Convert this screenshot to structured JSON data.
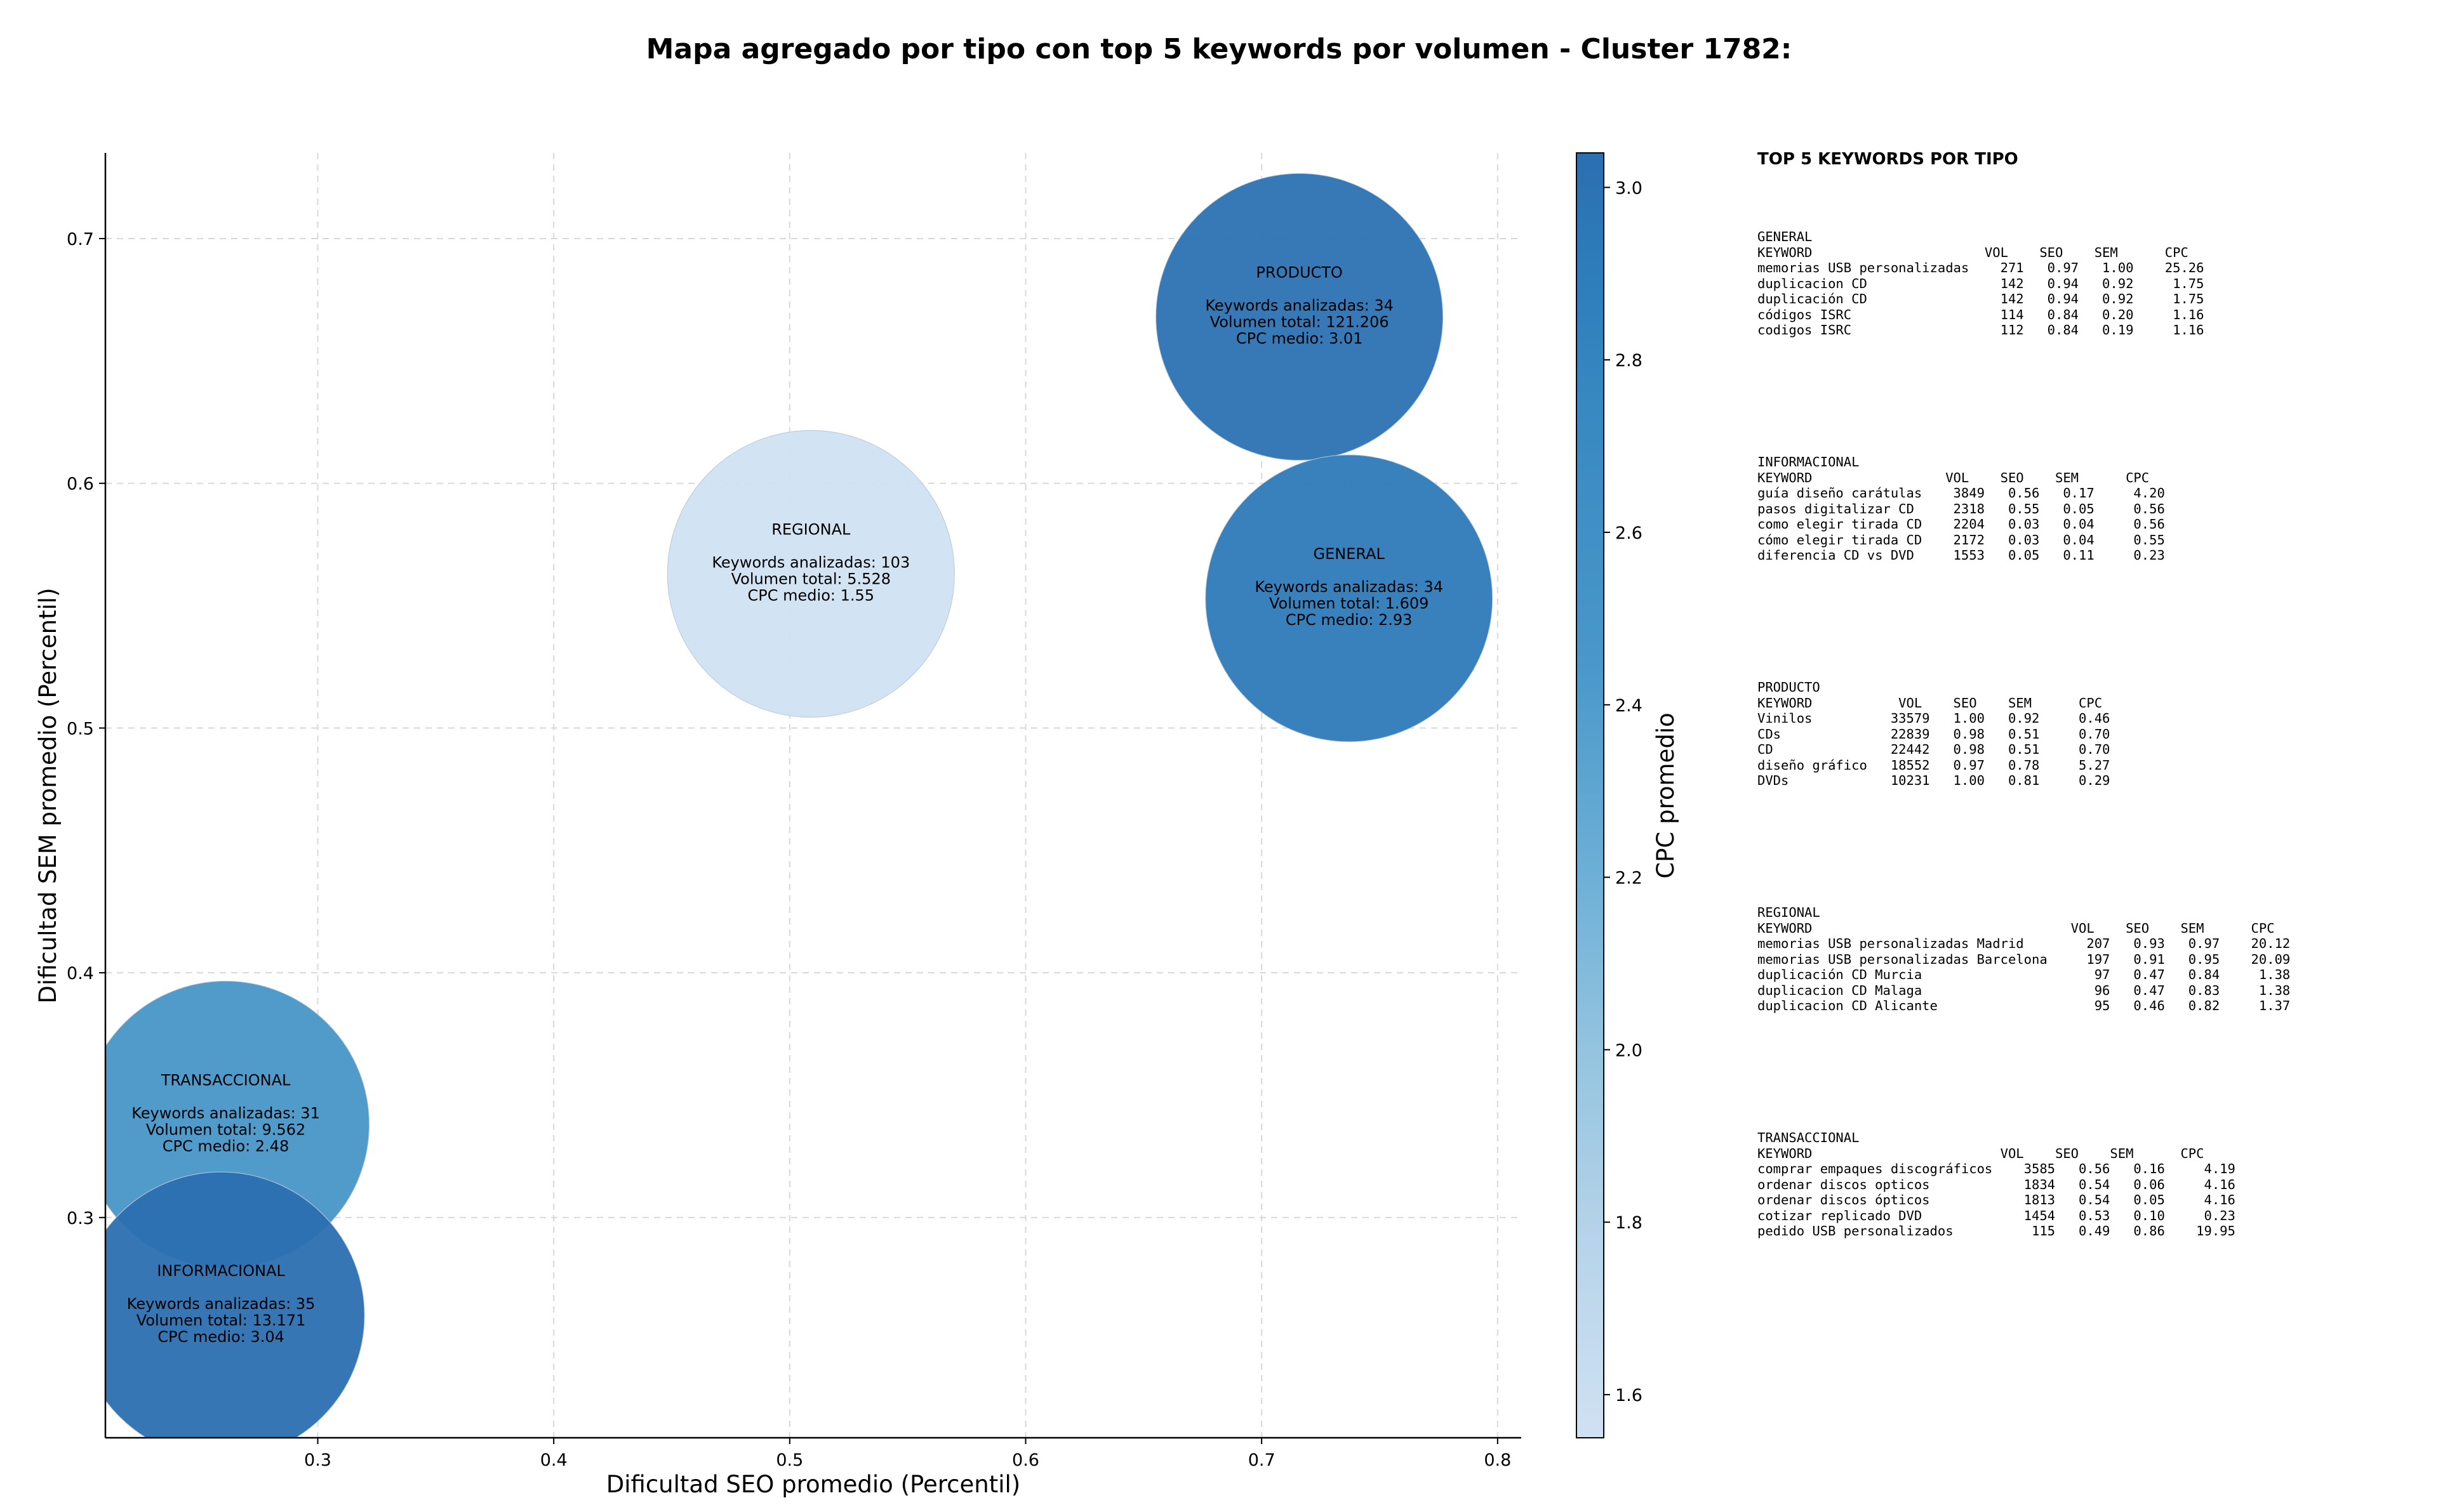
{
  "chart_data": {
    "type": "scatter",
    "title": "Mapa agregado por tipo con top 5 keywords por volumen - Cluster 1782:",
    "xlabel": "Dificultad SEO promedio (Percentil)",
    "ylabel": "Dificultad SEM promedio (Percentil)",
    "colorbar_label": "CPC promedio",
    "xlim": [
      0.21,
      0.81
    ],
    "ylim": [
      0.21,
      0.735
    ],
    "xticks": [
      "0.3",
      "0.4",
      "0.5",
      "0.6",
      "0.7",
      "0.8"
    ],
    "yticks": [
      "0.3",
      "0.4",
      "0.5",
      "0.6",
      "0.7"
    ],
    "colorbar_ticks": [
      "1.6",
      "1.8",
      "2.0",
      "2.2",
      "2.4",
      "2.6",
      "2.8",
      "3.0"
    ],
    "colorbar_range": [
      1.55,
      3.04
    ],
    "grid": true,
    "points": [
      {
        "name": "PRODUCTO",
        "x": 0.716,
        "y": 0.668,
        "cpc": 3.01,
        "keywords_label": "Keywords analizadas: 34",
        "volume_label": "Volumen total: 121.206",
        "cpc_label": "CPC medio: 3.01"
      },
      {
        "name": "REGIONAL",
        "x": 0.509,
        "y": 0.563,
        "cpc": 1.55,
        "keywords_label": "Keywords analizadas: 103",
        "volume_label": "Volumen total: 5.528",
        "cpc_label": "CPC medio: 1.55"
      },
      {
        "name": "GENERAL",
        "x": 0.737,
        "y": 0.553,
        "cpc": 2.93,
        "keywords_label": "Keywords analizadas: 34",
        "volume_label": "Volumen total: 1.609",
        "cpc_label": "CPC medio: 2.93"
      },
      {
        "name": "TRANSACCIONAL",
        "x": 0.261,
        "y": 0.338,
        "cpc": 2.48,
        "keywords_label": "Keywords analizadas: 31",
        "volume_label": "Volumen total: 9.562",
        "cpc_label": "CPC medio: 2.48"
      },
      {
        "name": "INFORMACIONAL",
        "x": 0.259,
        "y": 0.26,
        "cpc": 3.04,
        "keywords_label": "Keywords analizadas: 35",
        "volume_label": "Volumen total: 13.171",
        "cpc_label": "CPC medio: 3.04"
      }
    ]
  },
  "side_panel": {
    "title": "TOP 5 KEYWORDS POR TIPO",
    "blocks": [
      {
        "name": "GENERAL",
        "header": "KEYWORD                      VOL    SEO    SEM      CPC",
        "rows": [
          "memorias USB personalizadas    271   0.97   1.00    25.26",
          "duplicacion CD                 142   0.94   0.92     1.75",
          "duplicación CD                 142   0.94   0.92     1.75",
          "códigos ISRC                   114   0.84   0.20     1.16",
          "codigos ISRC                   112   0.84   0.19     1.16"
        ]
      },
      {
        "name": "INFORMACIONAL",
        "header": "KEYWORD                 VOL    SEO    SEM      CPC",
        "rows": [
          "guía diseño carátulas    3849   0.56   0.17     4.20",
          "pasos digitalizar CD     2318   0.55   0.05     0.56",
          "como elegir tirada CD    2204   0.03   0.04     0.56",
          "cómo elegir tirada CD    2172   0.03   0.04     0.55",
          "diferencia CD vs DVD     1553   0.05   0.11     0.23"
        ]
      },
      {
        "name": "PRODUCTO",
        "header": "KEYWORD           VOL    SEO    SEM      CPC",
        "rows": [
          "Vinilos          33579   1.00   0.92     0.46",
          "CDs              22839   0.98   0.51     0.70",
          "CD               22442   0.98   0.51     0.70",
          "diseño gráfico   18552   0.97   0.78     5.27",
          "DVDs             10231   1.00   0.81     0.29"
        ]
      },
      {
        "name": "REGIONAL",
        "header": "KEYWORD                                 VOL    SEO    SEM      CPC",
        "rows": [
          "memorias USB personalizadas Madrid        207   0.93   0.97    20.12",
          "memorias USB personalizadas Barcelona     197   0.91   0.95    20.09",
          "duplicación CD Murcia                      97   0.47   0.84     1.38",
          "duplicacion CD Malaga                      96   0.47   0.83     1.38",
          "duplicacion CD Alicante                    95   0.46   0.82     1.37"
        ]
      },
      {
        "name": "TRANSACCIONAL",
        "header": "KEYWORD                        VOL    SEO    SEM      CPC",
        "rows": [
          "comprar empaques discográficos    3585   0.56   0.16     4.19",
          "ordenar discos opticos            1834   0.54   0.06     4.16",
          "ordenar discos ópticos            1813   0.54   0.05     4.16",
          "cotizar replicado DVD             1454   0.53   0.10     0.23",
          "pedido USB personalizados          115   0.49   0.86    19.95"
        ]
      }
    ]
  }
}
